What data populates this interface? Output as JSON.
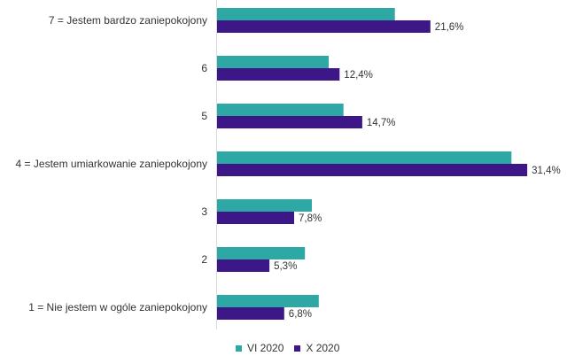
{
  "chart_data": {
    "type": "bar",
    "orientation": "horizontal",
    "categories": [
      "7 = Jestem bardzo zaniepokojony",
      "6",
      "5",
      "4  = Jestem umiarkowanie zaniepokojony",
      "3",
      "2",
      "1 = Nie jestem w ogóle zaniepokojony"
    ],
    "series": [
      {
        "name": "VI 2020",
        "color": "#2EA8A5",
        "values": [
          18.0,
          11.3,
          12.8,
          29.8,
          9.6,
          8.9,
          10.3
        ]
      },
      {
        "name": "X 2020",
        "color": "#3D1787",
        "values": [
          21.6,
          12.4,
          14.7,
          31.4,
          7.8,
          5.3,
          6.8
        ],
        "labels": [
          "21,6%",
          "12,4%",
          "14,7%",
          "31,4%",
          "7,8%",
          "5,3%",
          "6,8%"
        ]
      }
    ],
    "xlim": [
      0,
      35
    ],
    "title": "",
    "xlabel": "",
    "ylabel": "",
    "grid": false,
    "legend_position": "bottom"
  }
}
